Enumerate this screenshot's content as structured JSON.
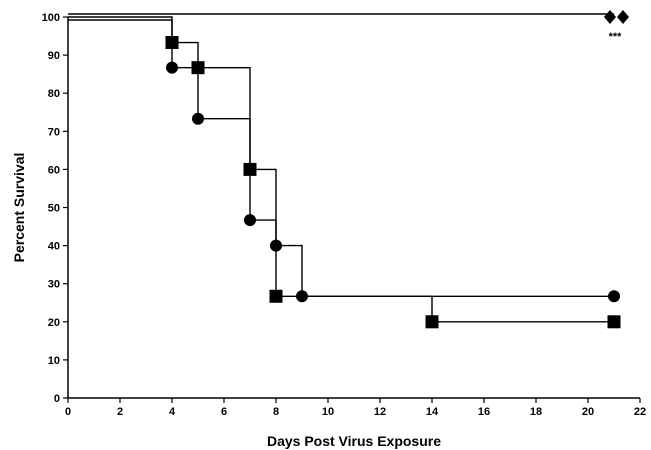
{
  "chart_data": {
    "type": "line",
    "subtype": "kaplan-meier-step",
    "xlabel": "Days Post Virus Exposure",
    "ylabel": "Percent Survival",
    "xlim": [
      0,
      22
    ],
    "ylim": [
      0,
      100
    ],
    "xticks": [
      0,
      2,
      4,
      6,
      8,
      10,
      12,
      14,
      16,
      18,
      20,
      22
    ],
    "yticks": [
      0,
      10,
      20,
      30,
      40,
      50,
      60,
      70,
      80,
      90,
      100
    ],
    "grid": false,
    "annotation": "***",
    "colors": {
      "line": "#000000",
      "marker": "#000000"
    },
    "series": [
      {
        "marker": "diamond",
        "points": [
          [
            0,
            100
          ],
          [
            21,
            100
          ]
        ],
        "step": [
          [
            0,
            100
          ],
          [
            21,
            100
          ]
        ]
      },
      {
        "marker": "circle",
        "points": [
          [
            4,
            86.7
          ],
          [
            5,
            73.3
          ],
          [
            7,
            46.7
          ],
          [
            8,
            40
          ],
          [
            9,
            26.7
          ],
          [
            21,
            26.7
          ]
        ],
        "step": [
          [
            0,
            100
          ],
          [
            4,
            100
          ],
          [
            4,
            86.7
          ],
          [
            5,
            86.7
          ],
          [
            5,
            73.3
          ],
          [
            7,
            73.3
          ],
          [
            7,
            46.7
          ],
          [
            8,
            46.7
          ],
          [
            8,
            40
          ],
          [
            9,
            40
          ],
          [
            9,
            26.7
          ],
          [
            21,
            26.7
          ]
        ]
      },
      {
        "marker": "square",
        "points": [
          [
            4,
            93.3
          ],
          [
            5,
            86.7
          ],
          [
            7,
            60
          ],
          [
            8,
            26.7
          ],
          [
            14,
            20
          ],
          [
            21,
            20
          ]
        ],
        "step": [
          [
            0,
            100
          ],
          [
            4,
            100
          ],
          [
            4,
            93.3
          ],
          [
            5,
            93.3
          ],
          [
            5,
            86.7
          ],
          [
            7,
            86.7
          ],
          [
            7,
            60
          ],
          [
            8,
            60
          ],
          [
            8,
            26.7
          ],
          [
            14,
            26.7
          ],
          [
            14,
            20
          ],
          [
            21,
            20
          ]
        ]
      }
    ]
  }
}
